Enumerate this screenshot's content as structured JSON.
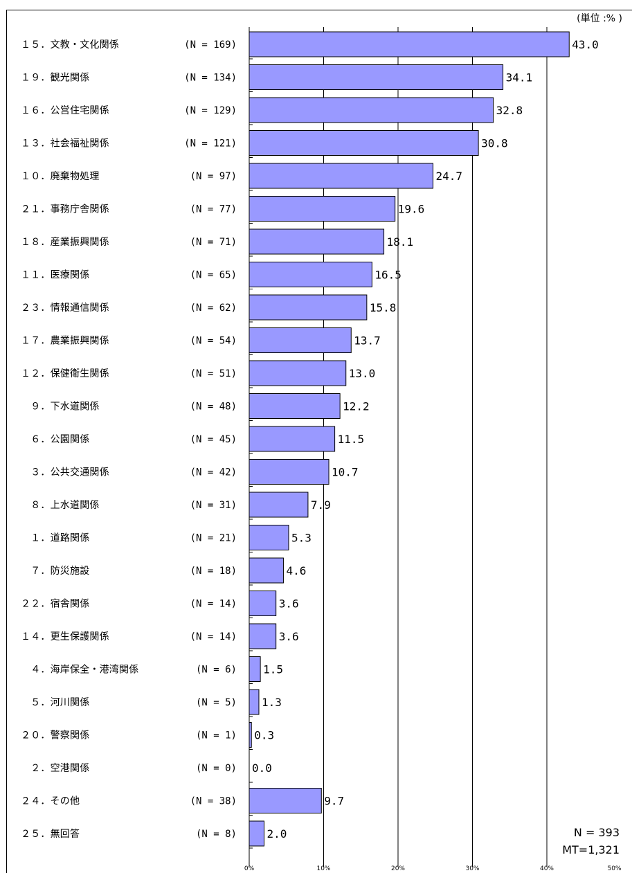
{
  "unit_label": "(単位 :% )",
  "summary": {
    "n": "N = 393",
    "mt": "MT=1,321"
  },
  "chart_data": {
    "type": "bar",
    "orientation": "horizontal",
    "xlim": [
      0,
      50
    ],
    "ticks": [
      "0%",
      "10%",
      "20%",
      "30%",
      "40%",
      "50%"
    ],
    "grid": true,
    "bar_color": "#9999ff",
    "categories": [
      {
        "label": "１５．文教・文化関係",
        "n": "(N = 169)",
        "value": 43.0,
        "value_label": "43.0"
      },
      {
        "label": "１９．観光関係",
        "n": "(N = 134)",
        "value": 34.1,
        "value_label": "34.1"
      },
      {
        "label": "１６．公営住宅関係",
        "n": "(N = 129)",
        "value": 32.8,
        "value_label": "32.8"
      },
      {
        "label": "１３．社会福祉関係",
        "n": "(N = 121)",
        "value": 30.8,
        "value_label": "30.8"
      },
      {
        "label": "１０．廃棄物処理",
        "n": "(N =  97)",
        "value": 24.7,
        "value_label": "24.7"
      },
      {
        "label": "２１．事務庁舎関係",
        "n": "(N =  77)",
        "value": 19.6,
        "value_label": "19.6"
      },
      {
        "label": "１８．産業振興関係",
        "n": "(N =  71)",
        "value": 18.1,
        "value_label": "18.1"
      },
      {
        "label": "１１．医療関係",
        "n": "(N =  65)",
        "value": 16.5,
        "value_label": "16.5"
      },
      {
        "label": "２３．情報通信関係",
        "n": "(N =  62)",
        "value": 15.8,
        "value_label": "15.8"
      },
      {
        "label": "１７．農業振興関係",
        "n": "(N =  54)",
        "value": 13.7,
        "value_label": "13.7"
      },
      {
        "label": "１２．保健衛生関係",
        "n": "(N =  51)",
        "value": 13.0,
        "value_label": "13.0"
      },
      {
        "label": "　９．下水道関係",
        "n": "(N =  48)",
        "value": 12.2,
        "value_label": "12.2"
      },
      {
        "label": "　６．公園関係",
        "n": "(N =  45)",
        "value": 11.5,
        "value_label": "11.5"
      },
      {
        "label": "　３．公共交通関係",
        "n": "(N =  42)",
        "value": 10.7,
        "value_label": "10.7"
      },
      {
        "label": "　８．上水道関係",
        "n": "(N =  31)",
        "value": 7.9,
        "value_label": "7.9"
      },
      {
        "label": "　１．道路関係",
        "n": "(N =  21)",
        "value": 5.3,
        "value_label": "5.3"
      },
      {
        "label": "　７．防災施設",
        "n": "(N =  18)",
        "value": 4.6,
        "value_label": "4.6"
      },
      {
        "label": "２２．宿舎関係",
        "n": "(N =  14)",
        "value": 3.6,
        "value_label": "3.6"
      },
      {
        "label": "１４．更生保護関係",
        "n": "(N =  14)",
        "value": 3.6,
        "value_label": "3.6"
      },
      {
        "label": "　４．海岸保全・港湾関係",
        "n": "(N =   6)",
        "value": 1.5,
        "value_label": "1.5"
      },
      {
        "label": "　５．河川関係",
        "n": "(N =   5)",
        "value": 1.3,
        "value_label": "1.3"
      },
      {
        "label": "２０．警察関係",
        "n": "(N =   1)",
        "value": 0.3,
        "value_label": "0.3"
      },
      {
        "label": "　２．空港関係",
        "n": "(N =   0)",
        "value": 0.0,
        "value_label": "0.0"
      },
      {
        "label": "２４．その他",
        "n": "(N =  38)",
        "value": 9.7,
        "value_label": "9.7"
      },
      {
        "label": "２５．無回答",
        "n": "(N =   8)",
        "value": 2.0,
        "value_label": "2.0"
      }
    ]
  }
}
